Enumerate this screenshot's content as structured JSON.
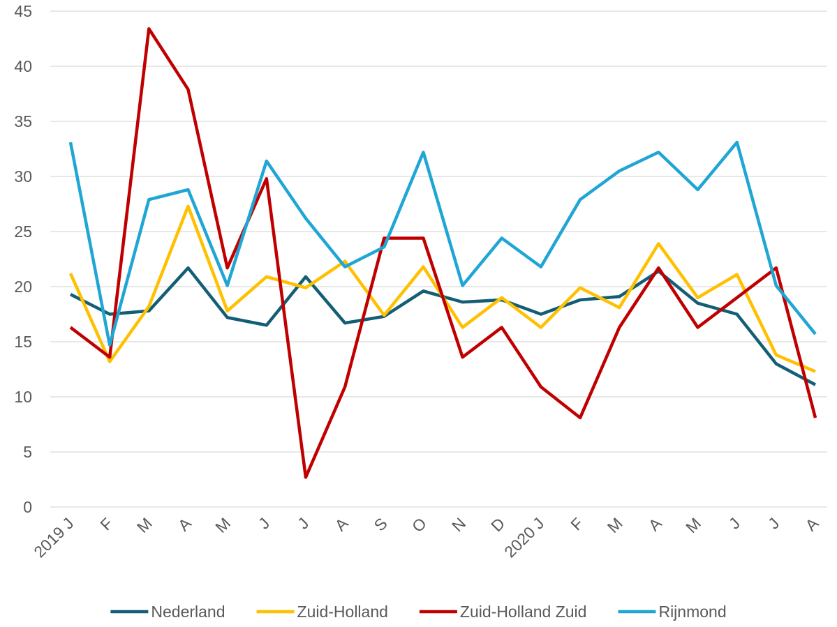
{
  "chart_data": {
    "type": "line",
    "categories": [
      "2019 J",
      "F",
      "M",
      "A",
      "M",
      "J",
      "J",
      "A",
      "S",
      "O",
      "N",
      "D",
      "2020 J",
      "F",
      "M",
      "A",
      "M",
      "J",
      "J",
      "A"
    ],
    "series": [
      {
        "name": "Nederland",
        "color": "#135e75",
        "values": [
          19.3,
          17.5,
          17.8,
          21.7,
          17.2,
          16.5,
          20.9,
          16.7,
          17.3,
          19.6,
          18.6,
          18.8,
          17.5,
          18.8,
          19.1,
          21.4,
          18.5,
          17.5,
          13.0,
          11.1
        ]
      },
      {
        "name": "Zuid-Holland",
        "color": "#ffc000",
        "values": [
          21.2,
          13.2,
          18.2,
          27.3,
          17.8,
          20.9,
          19.9,
          22.3,
          17.4,
          21.8,
          16.3,
          19.0,
          16.3,
          19.9,
          18.1,
          23.9,
          19.0,
          21.1,
          13.8,
          12.3
        ]
      },
      {
        "name": "Zuid-Holland Zuid",
        "color": "#c00000",
        "values": [
          16.3,
          13.6,
          43.4,
          37.9,
          21.7,
          29.8,
          2.7,
          10.9,
          24.4,
          24.4,
          13.6,
          16.3,
          10.9,
          8.1,
          16.3,
          21.7,
          16.3,
          19.0,
          21.7,
          8.1
        ]
      },
      {
        "name": "Rijnmond",
        "color": "#1fa6d4",
        "values": [
          33.1,
          14.7,
          27.9,
          28.8,
          20.1,
          31.4,
          26.2,
          21.8,
          23.6,
          32.2,
          20.1,
          24.4,
          21.8,
          27.9,
          30.5,
          32.2,
          28.8,
          33.1,
          20.1,
          15.7
        ]
      }
    ],
    "ylim": [
      0,
      45
    ],
    "yticks": [
      0,
      5,
      10,
      15,
      20,
      25,
      30,
      35,
      40,
      45
    ],
    "grid": true,
    "legend": "bottom"
  }
}
